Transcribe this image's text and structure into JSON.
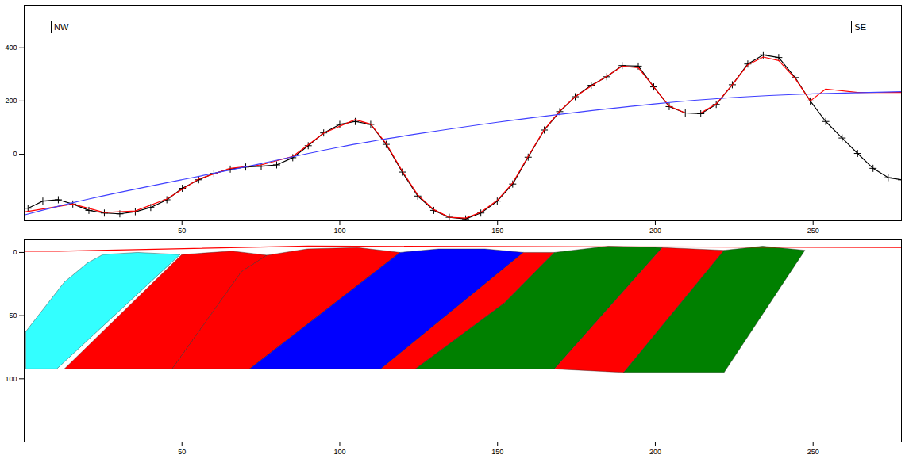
{
  "chart_data": [
    {
      "type": "line",
      "annotations": [
        "NW",
        "SE"
      ],
      "xlim": [
        0,
        278
      ],
      "xticks": [
        50,
        100,
        150,
        200,
        250
      ],
      "ylim": [
        -250,
        560
      ],
      "yticks": [
        0,
        200,
        400
      ],
      "grid": false,
      "series": [
        {
          "color": "#000000",
          "marker": "plus",
          "line_style": "solid",
          "x": [
            1.2,
            5.9,
            10.8,
            15.4,
            20.5,
            25.4,
            30.3,
            35.2,
            40.1,
            45.2,
            50.1,
            55.3,
            60.1,
            65.3,
            70.2,
            75.1,
            80,
            85.1,
            90,
            94.9,
            100,
            104.9,
            109.8,
            114.7,
            119.8,
            124.7,
            129.8,
            134.7,
            139.9,
            144.7,
            149.9,
            154.8,
            159.7,
            164.8,
            169.7,
            174.6,
            179.7,
            184.6,
            189.5,
            194.6,
            199.5,
            204.4,
            209.5,
            214.4,
            219.3,
            224.4,
            229.3,
            234.2,
            239.1,
            244.3,
            249.1,
            254,
            259.2,
            264.1,
            269,
            273.8,
            278
          ],
          "values": [
            -203,
            -176,
            -171,
            -187,
            -211,
            -221,
            -224,
            -216,
            -200,
            -171,
            -128,
            -96,
            -72,
            -56,
            -48,
            -45,
            -40,
            -13,
            32,
            80,
            112,
            123,
            112,
            37,
            -67,
            -157,
            -211,
            -237,
            -243,
            -221,
            -176,
            -112,
            -11,
            91,
            160,
            216,
            259,
            291,
            333,
            331,
            253,
            179,
            155,
            152,
            187,
            261,
            339,
            373,
            363,
            288,
            200,
            123,
            61,
            3,
            -53,
            -88,
            -96
          ]
        },
        {
          "color": "#ff0000",
          "line_style": "solid",
          "x": [
            0.5,
            15.4,
            25.4,
            35.2,
            45.2,
            55.3,
            65.3,
            75.1,
            85.1,
            95,
            104.9,
            109.8,
            114.7,
            119.8,
            124.7,
            129.8,
            134.7,
            139.9,
            144.7,
            149.9,
            154.8,
            159.7,
            164.8,
            169.7,
            174.6,
            179.7,
            184.6,
            189.5,
            194.6,
            199.5,
            204.4,
            209.5,
            214.4,
            219.3,
            224.4,
            229.3,
            234.2,
            239.1,
            244.3,
            249.1,
            254,
            264.1,
            278
          ],
          "values": [
            -216,
            -187,
            -219,
            -213,
            -168,
            -93,
            -53,
            -40,
            -8,
            80,
            130,
            113,
            40,
            -63,
            -153,
            -208,
            -237,
            -240,
            -218,
            -173,
            -108,
            -8,
            92,
            162,
            216,
            256,
            293,
            331,
            325,
            253,
            181,
            155,
            155,
            189,
            261,
            336,
            365,
            352,
            285,
            200,
            245,
            232,
            232
          ]
        },
        {
          "color": "#4040ff",
          "line_style": "smooth",
          "x": [
            0.5,
            20.5,
            49.9,
            75.1,
            100,
            125,
            149.9,
            174.8,
            199.7,
            224.7,
            249.9,
            278
          ],
          "values": [
            -227,
            -168,
            -96,
            -35,
            27,
            77,
            120,
            157,
            189,
            213,
            227,
            235
          ]
        }
      ]
    },
    {
      "type": "polygon",
      "xlim": [
        0,
        278
      ],
      "xticks": [
        50,
        100,
        150,
        200,
        250
      ],
      "ylim": [
        150,
        -10
      ],
      "yticks": [
        0,
        50,
        100
      ],
      "grid": false,
      "series": [
        {
          "type": "polygon",
          "color": "#33ffff",
          "x": [
            0.5,
            12.7,
            20,
            24.9,
            35.9,
            49.4,
            10.3,
            0.5
          ],
          "values": [
            62.6,
            23.5,
            8.4,
            1.7,
            0,
            1.7,
            92.2,
            92.2
          ]
        },
        {
          "type": "polygon",
          "color": "#ff0000",
          "x": [
            12.7,
            49.9,
            65.8,
            77,
            68.9,
            46.9
          ],
          "values": [
            92.2,
            1.7,
            -1.1,
            2.2,
            15.1,
            92.2
          ]
        },
        {
          "type": "polygon",
          "color": "#ff0000",
          "x": [
            46.9,
            68.9,
            77,
            89.7,
            105.6,
            119.1,
            71.4
          ],
          "values": [
            92.2,
            15.1,
            2.2,
            -2.8,
            -3.9,
            0,
            92.2
          ]
        },
        {
          "type": "polygon",
          "color": "#0000ff",
          "x": [
            71.4,
            119.1,
            131.3,
            146,
            158.2,
            113
          ],
          "values": [
            92.2,
            0,
            -2.8,
            -2.8,
            0,
            92.2
          ]
        },
        {
          "type": "polygon",
          "color": "#ff0000",
          "x": [
            113,
            158.2,
            168,
            152.1,
            124
          ],
          "values": [
            92.2,
            0,
            0,
            40.2,
            92.2
          ]
        },
        {
          "type": "polygon",
          "color": "#008000",
          "x": [
            124,
            152.1,
            168,
            185.1,
            202.2,
            168
          ],
          "values": [
            92.2,
            40.2,
            0,
            -5,
            -3.9,
            92.2
          ]
        },
        {
          "type": "polygon",
          "color": "#ff0000",
          "x": [
            168,
            202.2,
            221.8,
            190
          ],
          "values": [
            92.2,
            -3.9,
            -1.7,
            95
          ]
        },
        {
          "type": "polygon",
          "color": "#008000",
          "x": [
            190,
            221.8,
            234,
            247.4,
            221.8
          ],
          "values": [
            95,
            -1.7,
            -5,
            -1.7,
            95
          ]
        },
        {
          "type": "line",
          "color": "#ff0000",
          "line_style": "solid",
          "x": [
            0,
            11,
            90,
            278
          ],
          "values": [
            -1,
            -1,
            -5,
            -4
          ]
        }
      ]
    }
  ]
}
